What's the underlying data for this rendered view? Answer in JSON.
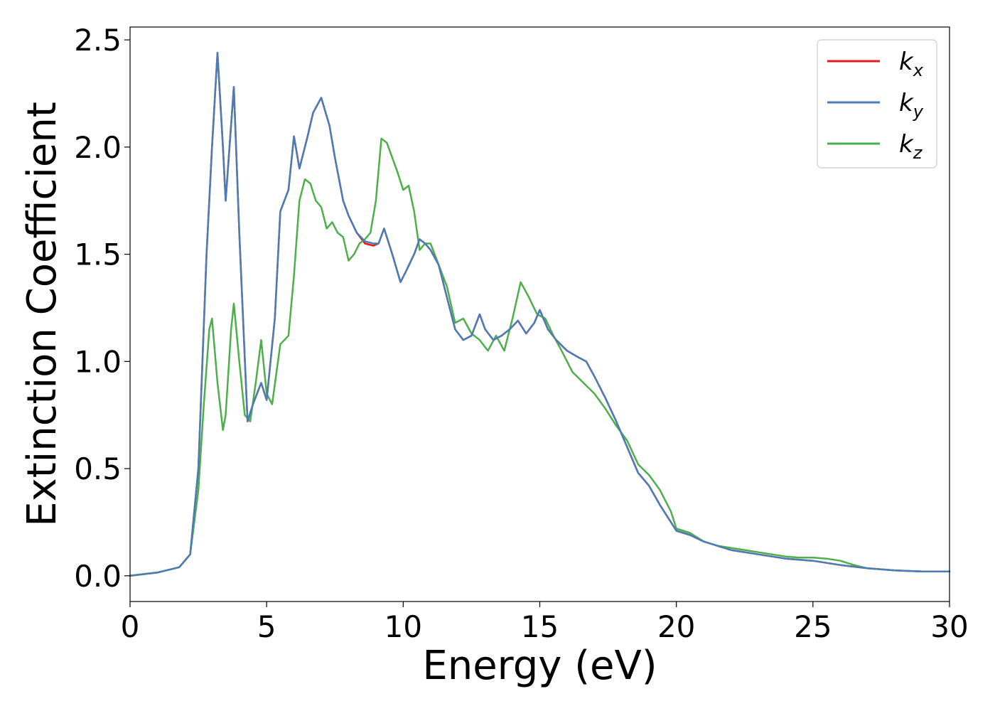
{
  "chart_data": {
    "type": "line",
    "title": "",
    "xlabel": "Energy (eV)",
    "ylabel": "Extinction Coefficient",
    "xlim": [
      0,
      30
    ],
    "ylim": [
      -0.12,
      2.56
    ],
    "xticks": [
      0,
      5,
      10,
      15,
      20,
      25,
      30
    ],
    "xtick_labels": [
      "0",
      "5",
      "10",
      "15",
      "20",
      "25",
      "30"
    ],
    "yticks": [
      0.0,
      0.5,
      1.0,
      1.5,
      2.0,
      2.5
    ],
    "ytick_labels": [
      "0.0",
      "0.5",
      "1.0",
      "1.5",
      "2.0",
      "2.5"
    ],
    "grid": false,
    "legend_position": "top-right",
    "series": [
      {
        "name_base": "k",
        "name_sub": "x",
        "color": "#e41a1c",
        "x": [
          0,
          1,
          1.8,
          2.2,
          2.5,
          2.8,
          3.0,
          3.2,
          3.4,
          3.5,
          3.8,
          4.0,
          4.3,
          4.5,
          4.8,
          5.0,
          5.3,
          5.5,
          5.8,
          6.0,
          6.2,
          6.5,
          6.7,
          7.0,
          7.3,
          7.5,
          7.8,
          8.0,
          8.3,
          8.6,
          8.9,
          9.1,
          9.3,
          9.6,
          9.9,
          10.1,
          10.4,
          10.6,
          10.8,
          11.0,
          11.3,
          11.6,
          11.9,
          12.2,
          12.5,
          12.8,
          13.0,
          13.3,
          13.6,
          13.9,
          14.2,
          14.5,
          14.8,
          15.0,
          15.3,
          15.6,
          16.0,
          16.4,
          16.7,
          17.0,
          17.4,
          17.8,
          18.2,
          18.6,
          19.0,
          19.4,
          19.8,
          20.0,
          20.5,
          21.0,
          21.5,
          22.0,
          23.0,
          24.0,
          25.0,
          26.0,
          27.0,
          28.0,
          29.0,
          30.0
        ],
        "y": [
          0.0,
          0.015,
          0.04,
          0.1,
          0.5,
          1.5,
          2.0,
          2.44,
          2.0,
          1.75,
          2.28,
          1.6,
          0.72,
          0.8,
          0.9,
          0.82,
          1.2,
          1.7,
          1.8,
          2.05,
          1.9,
          2.05,
          2.16,
          2.23,
          2.1,
          1.95,
          1.75,
          1.68,
          1.6,
          1.55,
          1.54,
          1.55,
          1.62,
          1.5,
          1.37,
          1.42,
          1.5,
          1.57,
          1.55,
          1.52,
          1.45,
          1.3,
          1.15,
          1.1,
          1.12,
          1.22,
          1.15,
          1.1,
          1.12,
          1.15,
          1.19,
          1.13,
          1.18,
          1.24,
          1.15,
          1.1,
          1.05,
          1.02,
          1.0,
          0.93,
          0.83,
          0.72,
          0.6,
          0.48,
          0.42,
          0.33,
          0.25,
          0.21,
          0.19,
          0.16,
          0.14,
          0.12,
          0.1,
          0.08,
          0.07,
          0.05,
          0.035,
          0.025,
          0.02,
          0.02
        ]
      },
      {
        "name_base": "k",
        "name_sub": "y",
        "color": "#4a7db5",
        "x": [
          0,
          1,
          1.8,
          2.2,
          2.5,
          2.8,
          3.0,
          3.2,
          3.4,
          3.5,
          3.8,
          4.0,
          4.3,
          4.5,
          4.8,
          5.0,
          5.3,
          5.5,
          5.8,
          6.0,
          6.2,
          6.5,
          6.7,
          7.0,
          7.3,
          7.5,
          7.8,
          8.0,
          8.3,
          8.6,
          8.9,
          9.1,
          9.3,
          9.6,
          9.9,
          10.1,
          10.4,
          10.6,
          10.8,
          11.0,
          11.3,
          11.6,
          11.9,
          12.2,
          12.5,
          12.8,
          13.0,
          13.3,
          13.6,
          13.9,
          14.2,
          14.5,
          14.8,
          15.0,
          15.3,
          15.6,
          16.0,
          16.4,
          16.7,
          17.0,
          17.4,
          17.8,
          18.2,
          18.6,
          19.0,
          19.4,
          19.8,
          20.0,
          20.5,
          21.0,
          21.5,
          22.0,
          23.0,
          24.0,
          25.0,
          26.0,
          27.0,
          28.0,
          29.0,
          30.0
        ],
        "y": [
          0.0,
          0.015,
          0.04,
          0.1,
          0.5,
          1.5,
          2.0,
          2.44,
          2.0,
          1.75,
          2.28,
          1.6,
          0.72,
          0.8,
          0.9,
          0.82,
          1.2,
          1.7,
          1.8,
          2.05,
          1.9,
          2.05,
          2.16,
          2.23,
          2.1,
          1.95,
          1.75,
          1.68,
          1.6,
          1.56,
          1.55,
          1.55,
          1.62,
          1.5,
          1.37,
          1.42,
          1.5,
          1.57,
          1.55,
          1.52,
          1.45,
          1.3,
          1.15,
          1.1,
          1.12,
          1.22,
          1.15,
          1.1,
          1.12,
          1.15,
          1.19,
          1.13,
          1.18,
          1.24,
          1.15,
          1.1,
          1.05,
          1.02,
          1.0,
          0.93,
          0.83,
          0.72,
          0.6,
          0.48,
          0.42,
          0.33,
          0.25,
          0.21,
          0.19,
          0.16,
          0.14,
          0.12,
          0.1,
          0.08,
          0.07,
          0.05,
          0.035,
          0.025,
          0.02,
          0.02
        ]
      },
      {
        "name_base": "k",
        "name_sub": "z",
        "color": "#4daf4a",
        "x": [
          0,
          1,
          1.8,
          2.2,
          2.5,
          2.7,
          2.9,
          3.0,
          3.2,
          3.4,
          3.5,
          3.7,
          3.8,
          4.0,
          4.2,
          4.4,
          4.6,
          4.8,
          5.0,
          5.2,
          5.5,
          5.8,
          6.0,
          6.2,
          6.4,
          6.6,
          6.8,
          7.0,
          7.2,
          7.4,
          7.6,
          7.8,
          8.0,
          8.2,
          8.4,
          8.6,
          8.8,
          9.0,
          9.2,
          9.4,
          9.6,
          9.8,
          10.0,
          10.2,
          10.4,
          10.6,
          10.8,
          11.0,
          11.3,
          11.6,
          11.9,
          12.2,
          12.5,
          12.8,
          13.1,
          13.4,
          13.7,
          14.0,
          14.3,
          14.6,
          14.9,
          15.2,
          15.5,
          15.8,
          16.2,
          16.6,
          17.0,
          17.4,
          17.8,
          18.2,
          18.6,
          19.0,
          19.4,
          19.8,
          20.0,
          20.5,
          21.0,
          21.5,
          22.0,
          22.5,
          23.0,
          23.5,
          24.0,
          24.5,
          25.0,
          25.5,
          26.0,
          26.5,
          27.0,
          28.0,
          29.0,
          30.0
        ],
        "y": [
          0.0,
          0.015,
          0.04,
          0.1,
          0.4,
          0.8,
          1.15,
          1.2,
          0.9,
          0.68,
          0.75,
          1.15,
          1.27,
          1.0,
          0.75,
          0.72,
          0.9,
          1.1,
          0.85,
          0.8,
          1.08,
          1.12,
          1.4,
          1.75,
          1.85,
          1.83,
          1.75,
          1.72,
          1.62,
          1.65,
          1.6,
          1.58,
          1.47,
          1.5,
          1.55,
          1.57,
          1.6,
          1.75,
          2.04,
          2.02,
          1.95,
          1.88,
          1.8,
          1.82,
          1.7,
          1.52,
          1.55,
          1.55,
          1.45,
          1.35,
          1.18,
          1.2,
          1.13,
          1.1,
          1.05,
          1.12,
          1.05,
          1.2,
          1.37,
          1.3,
          1.22,
          1.2,
          1.12,
          1.05,
          0.95,
          0.9,
          0.85,
          0.78,
          0.7,
          0.63,
          0.52,
          0.47,
          0.4,
          0.3,
          0.22,
          0.2,
          0.16,
          0.14,
          0.13,
          0.12,
          0.11,
          0.1,
          0.09,
          0.085,
          0.085,
          0.08,
          0.07,
          0.05,
          0.035,
          0.025,
          0.02,
          0.02
        ]
      }
    ]
  }
}
